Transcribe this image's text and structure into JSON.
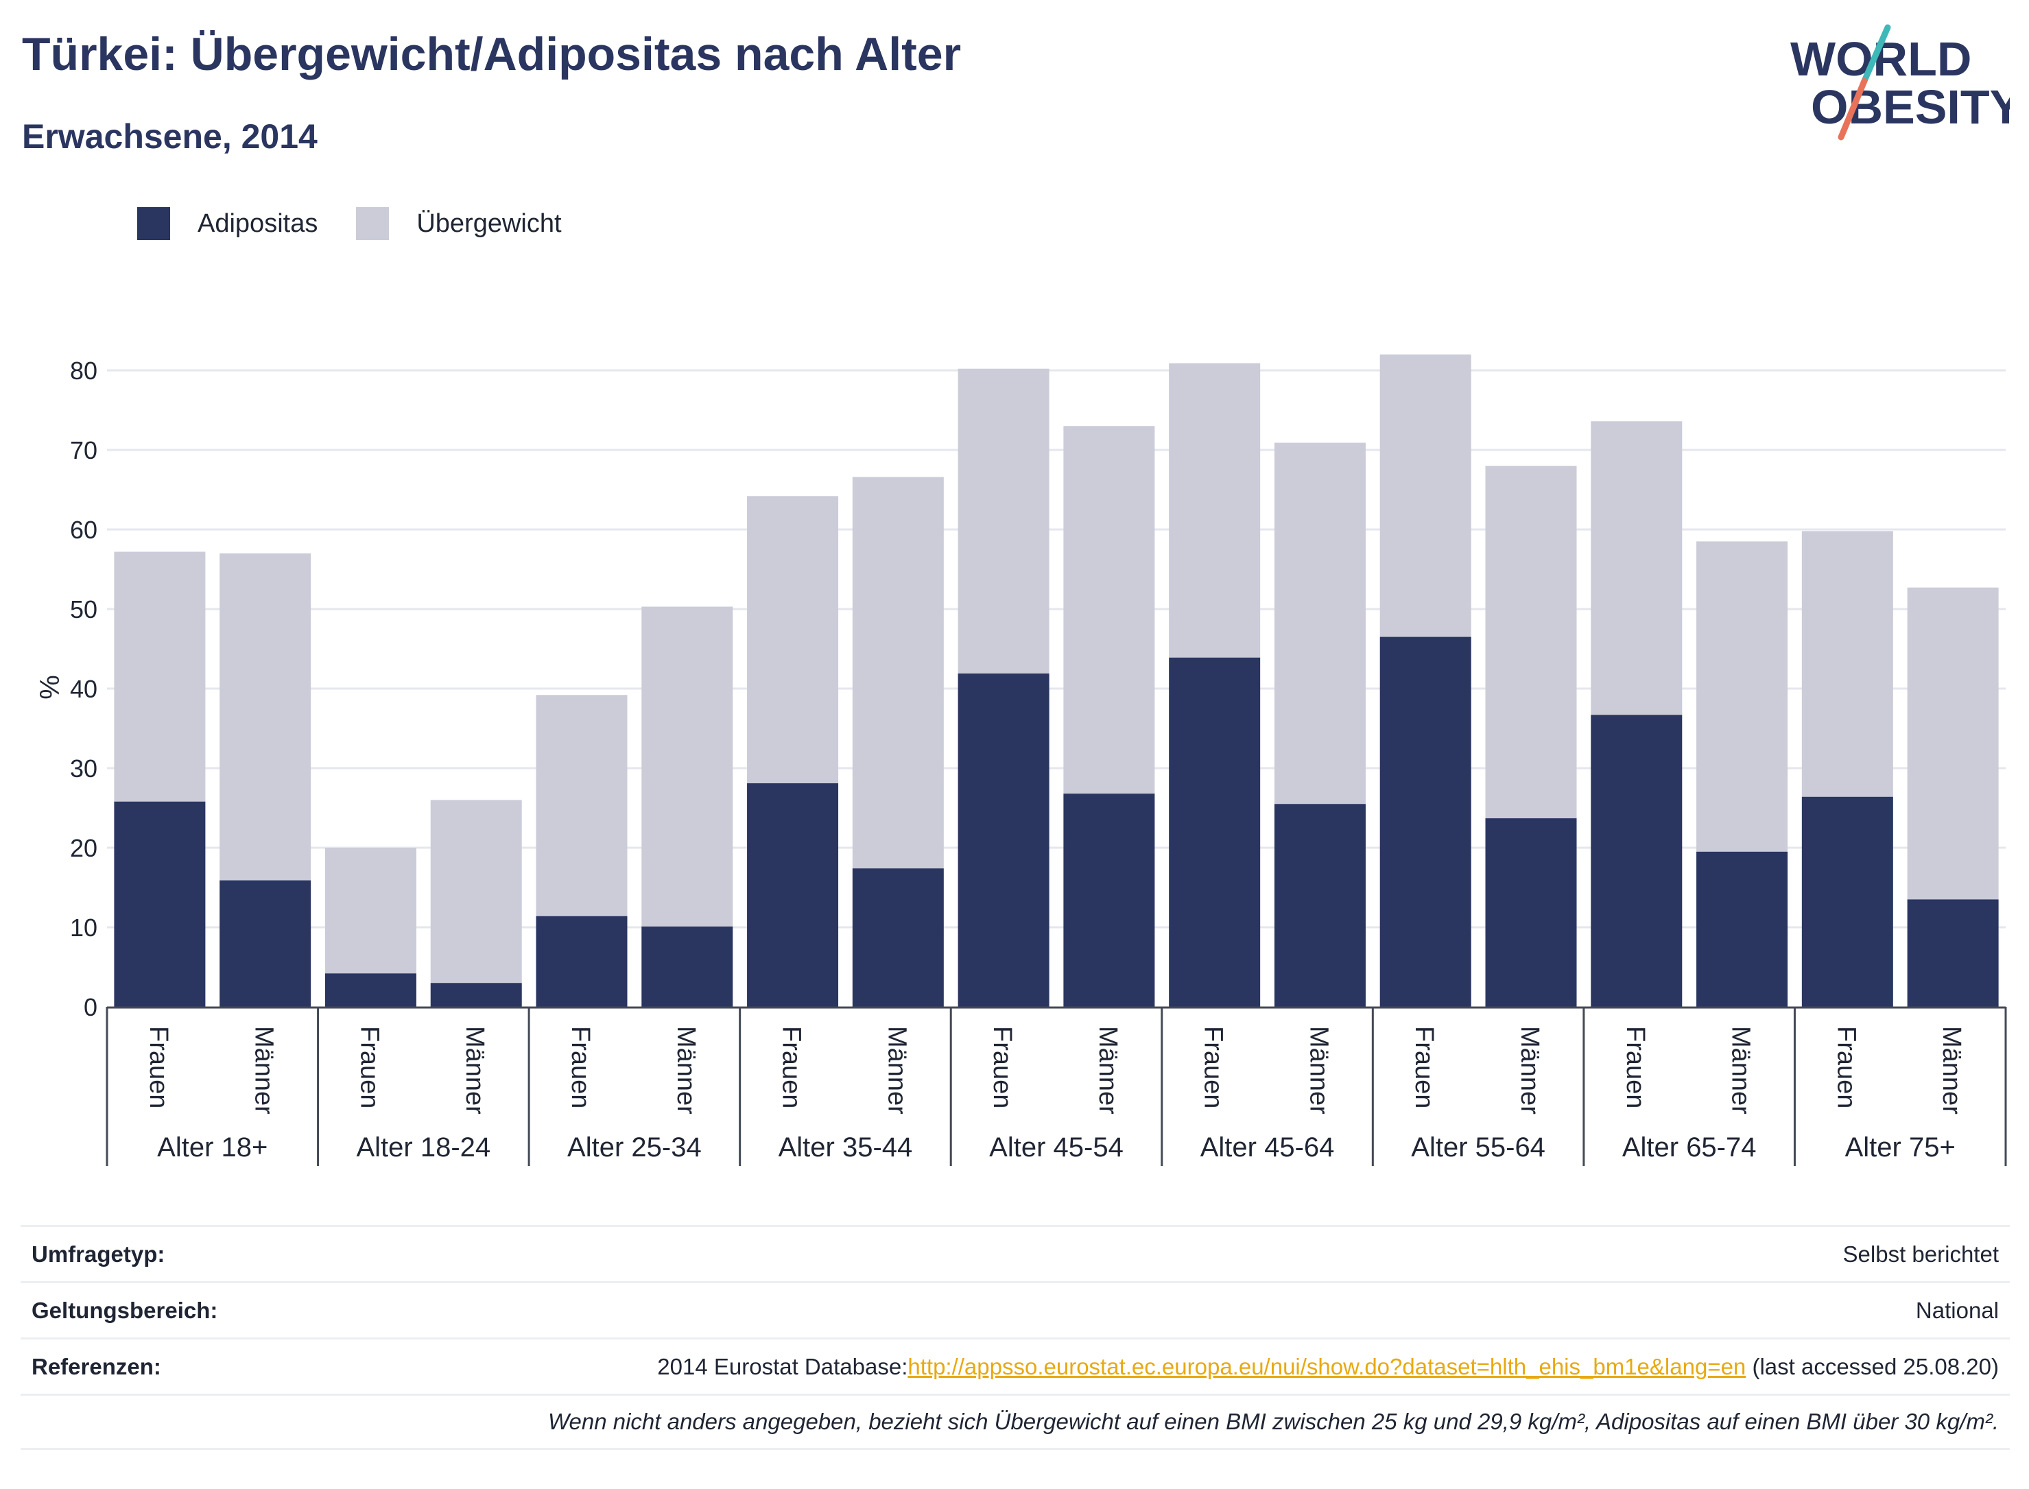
{
  "title": "Türkei: Übergewicht/Adipositas nach Alter",
  "subtitle": "Erwachsene, 2014",
  "logo": {
    "line1": "WORLD",
    "line2": "OBESITY"
  },
  "colors": {
    "obesity": "#2a3560",
    "overweight": "#cbccd8",
    "link": "#e8a911",
    "logo_teal": "#3fb8b8",
    "logo_coral": "#e8735a"
  },
  "chart_data": {
    "type": "bar",
    "stacked": true,
    "ylabel": "%",
    "ylim": [
      0,
      85
    ],
    "yticks": [
      0,
      10,
      20,
      30,
      40,
      50,
      60,
      70,
      80
    ],
    "grid": true,
    "legend_position": "top-left",
    "groups": [
      "Alter 18+",
      "Alter 18-24",
      "Alter 25-34",
      "Alter 35-44",
      "Alter 45-54",
      "Alter 45-64",
      "Alter 55-64",
      "Alter 65-74",
      "Alter 75+"
    ],
    "subcategories": [
      "Frauen",
      "Männer"
    ],
    "series": [
      {
        "name": "Adipositas",
        "values": [
          25.8,
          15.9,
          4.2,
          3.0,
          11.4,
          10.1,
          28.1,
          17.4,
          41.9,
          26.8,
          43.9,
          25.5,
          46.5,
          23.7,
          36.7,
          19.5,
          26.4,
          13.5
        ]
      },
      {
        "name": "Übergewicht",
        "values": [
          31.4,
          41.1,
          15.8,
          23.0,
          27.8,
          40.2,
          36.1,
          49.2,
          38.3,
          46.2,
          37.0,
          45.4,
          35.5,
          44.3,
          36.9,
          39.0,
          33.4,
          39.2
        ]
      }
    ]
  },
  "info": {
    "survey": {
      "key": "Umfragetyp:",
      "value": "Selbst berichtet"
    },
    "scope": {
      "key": "Geltungsbereich:",
      "value": "National"
    },
    "refs": {
      "key": "Referenzen:",
      "prefix": "2014 Eurostat Database:",
      "link": "http://appsso.eurostat.ec.europa.eu/nui/show.do?dataset=hlth_ehis_bm1e&lang=en",
      "suffix": " (last accessed 25.08.20)"
    },
    "note": "Wenn nicht anders angegeben, bezieht sich Übergewicht auf einen BMI zwischen 25 kg und 29,9 kg/m², Adipositas auf einen BMI über 30 kg/m²."
  }
}
